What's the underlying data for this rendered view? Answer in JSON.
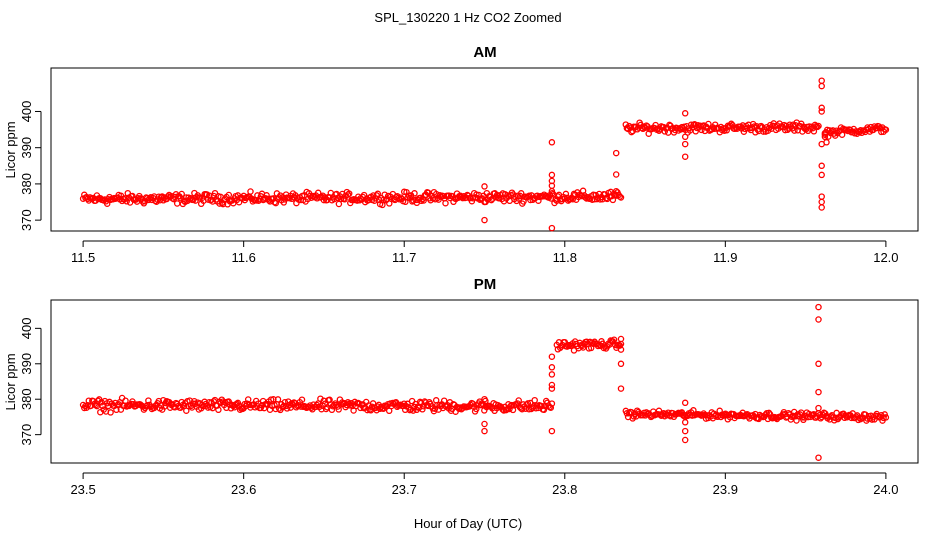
{
  "figure": {
    "title": "SPL_130220  1 Hz CO2 Zoomed",
    "xlabel": "Hour of Day (UTC)"
  },
  "colors": {
    "points": "#ff0000",
    "axes": "#000000"
  },
  "chart_data": [
    {
      "type": "scatter",
      "title": "AM",
      "xlabel": "Hour of Day (UTC)",
      "ylabel": "Licor ppm",
      "xlim": [
        11.48,
        12.02
      ],
      "ylim": [
        367,
        412
      ],
      "xticks": [
        11.5,
        11.6,
        11.7,
        11.8,
        11.9,
        12.0
      ],
      "xtick_labels": [
        "11.5",
        "11.6",
        "11.7",
        "11.8",
        "11.9",
        "12.0"
      ],
      "yticks": [
        370,
        380,
        390,
        400
      ],
      "ytick_labels": [
        "370",
        "380",
        "390",
        "400"
      ],
      "marker": "open-circle",
      "segments": [
        {
          "x_start": 11.5,
          "x_end": 11.835,
          "y_start": 375.8,
          "y_end": 376.5,
          "noise": 0.7
        },
        {
          "x_start": 11.838,
          "x_end": 11.958,
          "y_start": 395.4,
          "y_end": 395.6,
          "noise": 0.6
        },
        {
          "x_start": 11.962,
          "x_end": 12.0,
          "y_start": 394.2,
          "y_end": 395.3,
          "noise": 0.5
        }
      ],
      "outliers": [
        [
          11.75,
          370
        ],
        [
          11.75,
          375
        ],
        [
          11.75,
          379.3
        ],
        [
          11.792,
          367.8
        ],
        [
          11.792,
          378
        ],
        [
          11.792,
          379.5
        ],
        [
          11.792,
          382.5
        ],
        [
          11.792,
          380.8
        ],
        [
          11.792,
          391.5
        ],
        [
          11.832,
          378
        ],
        [
          11.832,
          382.6
        ],
        [
          11.832,
          388.5
        ],
        [
          11.875,
          387.5
        ],
        [
          11.875,
          391
        ],
        [
          11.875,
          393
        ],
        [
          11.875,
          399.5
        ],
        [
          11.96,
          373.5
        ],
        [
          11.96,
          375
        ],
        [
          11.96,
          376.5
        ],
        [
          11.96,
          382.5
        ],
        [
          11.96,
          385
        ],
        [
          11.96,
          391
        ],
        [
          11.96,
          400
        ],
        [
          11.96,
          401
        ],
        [
          11.96,
          407
        ],
        [
          11.96,
          408.5
        ],
        [
          11.962,
          393
        ],
        [
          11.962,
          394
        ],
        [
          11.963,
          391.5
        ]
      ]
    },
    {
      "type": "scatter",
      "title": "PM",
      "xlabel": "Hour of Day (UTC)",
      "ylabel": "Licor ppm",
      "xlim": [
        23.48,
        24.02
      ],
      "ylim": [
        362,
        408
      ],
      "xticks": [
        23.5,
        23.6,
        23.7,
        23.8,
        23.9,
        24.0
      ],
      "xtick_labels": [
        "23.5",
        "23.6",
        "23.7",
        "23.8",
        "23.9",
        "24.0"
      ],
      "yticks": [
        370,
        380,
        390,
        400
      ],
      "ytick_labels": [
        "370",
        "380",
        "390",
        "400"
      ],
      "marker": "open-circle",
      "segments": [
        {
          "x_start": 23.5,
          "x_end": 23.792,
          "y_start": 378.3,
          "y_end": 378,
          "noise": 0.8
        },
        {
          "x_start": 23.795,
          "x_end": 23.835,
          "y_start": 395.2,
          "y_end": 395.5,
          "noise": 0.6
        },
        {
          "x_start": 23.838,
          "x_end": 24.0,
          "y_start": 375.8,
          "y_end": 375,
          "noise": 0.5
        }
      ],
      "outliers": [
        [
          23.75,
          371
        ],
        [
          23.75,
          373
        ],
        [
          23.75,
          380
        ],
        [
          23.792,
          371
        ],
        [
          23.792,
          383
        ],
        [
          23.792,
          384
        ],
        [
          23.792,
          387
        ],
        [
          23.792,
          389
        ],
        [
          23.792,
          392
        ],
        [
          23.835,
          383
        ],
        [
          23.835,
          390
        ],
        [
          23.835,
          394
        ],
        [
          23.835,
          397
        ],
        [
          23.875,
          368.5
        ],
        [
          23.875,
          371
        ],
        [
          23.875,
          373.5
        ],
        [
          23.875,
          379
        ],
        [
          23.958,
          363.5
        ],
        [
          23.958,
          376
        ],
        [
          23.958,
          377.5
        ],
        [
          23.958,
          382
        ],
        [
          23.958,
          390
        ],
        [
          23.958,
          402.5
        ],
        [
          23.958,
          406
        ]
      ]
    }
  ]
}
